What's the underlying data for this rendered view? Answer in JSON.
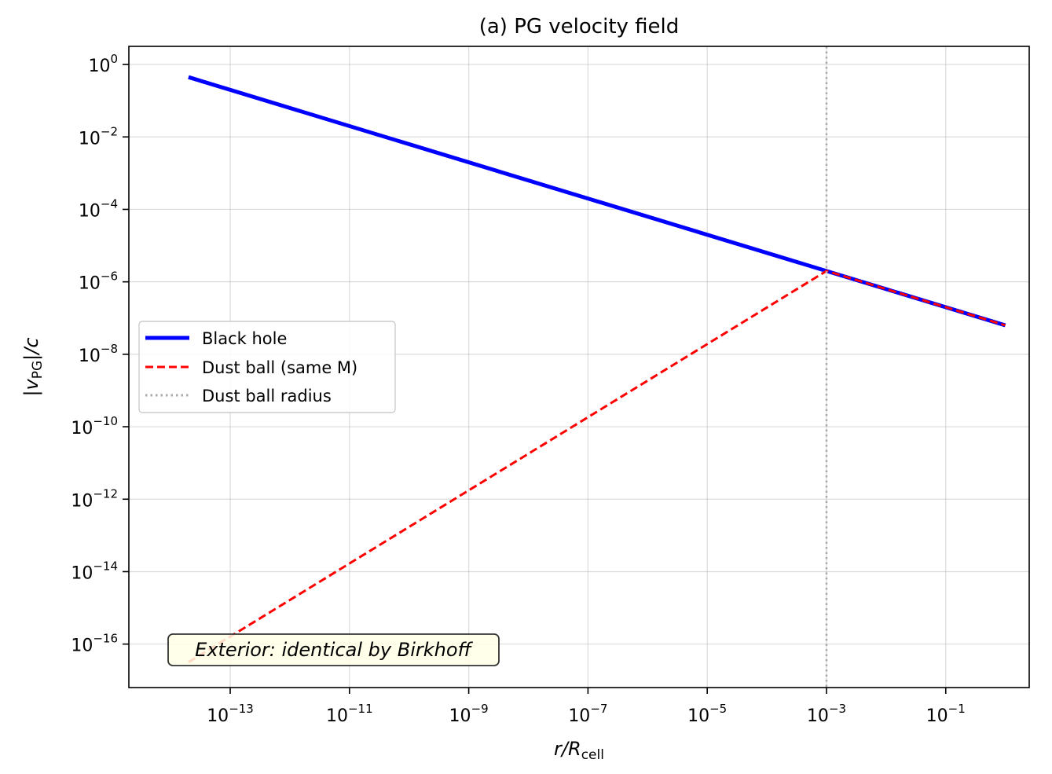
{
  "chart_data": {
    "type": "line",
    "title": "(a) PG velocity field",
    "xlabel": {
      "main": "r/R",
      "sub": "cell"
    },
    "ylabel": {
      "pre": "|v",
      "sub": "PG",
      "post": "|/c"
    },
    "xscale": "log",
    "yscale": "log",
    "xlim_log10": [
      -14.7,
      0.4
    ],
    "ylim_log10": [
      -17.2,
      0.5
    ],
    "grid": true,
    "legend_location": "center-left",
    "xticks": [
      {
        "base": "10",
        "exp": "−13",
        "log10": -13
      },
      {
        "base": "10",
        "exp": "−11",
        "log10": -11
      },
      {
        "base": "10",
        "exp": "−9",
        "log10": -9
      },
      {
        "base": "10",
        "exp": "−7",
        "log10": -7
      },
      {
        "base": "10",
        "exp": "−5",
        "log10": -5
      },
      {
        "base": "10",
        "exp": "−3",
        "log10": -3
      },
      {
        "base": "10",
        "exp": "−1",
        "log10": -1
      }
    ],
    "yticks": [
      {
        "base": "10",
        "exp": "0",
        "log10": 0
      },
      {
        "base": "10",
        "exp": "−2",
        "log10": -2
      },
      {
        "base": "10",
        "exp": "−4",
        "log10": -4
      },
      {
        "base": "10",
        "exp": "−6",
        "log10": -6
      },
      {
        "base": "10",
        "exp": "−8",
        "log10": -8
      },
      {
        "base": "10",
        "exp": "−10",
        "log10": -10
      },
      {
        "base": "10",
        "exp": "−12",
        "log10": -12
      },
      {
        "base": "10",
        "exp": "−14",
        "log10": -14
      },
      {
        "base": "10",
        "exp": "−16",
        "log10": -16
      }
    ],
    "series": [
      {
        "name": "Black hole",
        "color": "#0000ff",
        "style": "solid",
        "x_log10": [
          -13.7,
          0
        ],
        "y_log10": [
          -0.35,
          -7.2
        ]
      },
      {
        "name": "Dust ball (same M)",
        "color": "#ff0000",
        "style": "dashed",
        "x_log10": [
          -13.7,
          -3,
          0
        ],
        "y_log10": [
          -16.5,
          -5.7,
          -7.2
        ]
      },
      {
        "name": "Dust ball radius",
        "color": "#aaaaaa",
        "style": "dotted",
        "vline_x_log10": -3
      }
    ],
    "annotation": {
      "text": "Exterior: identical by Birkhoff",
      "location": "bottom-left",
      "box_color": "#ffffe6",
      "edge_color": "#333333"
    }
  }
}
